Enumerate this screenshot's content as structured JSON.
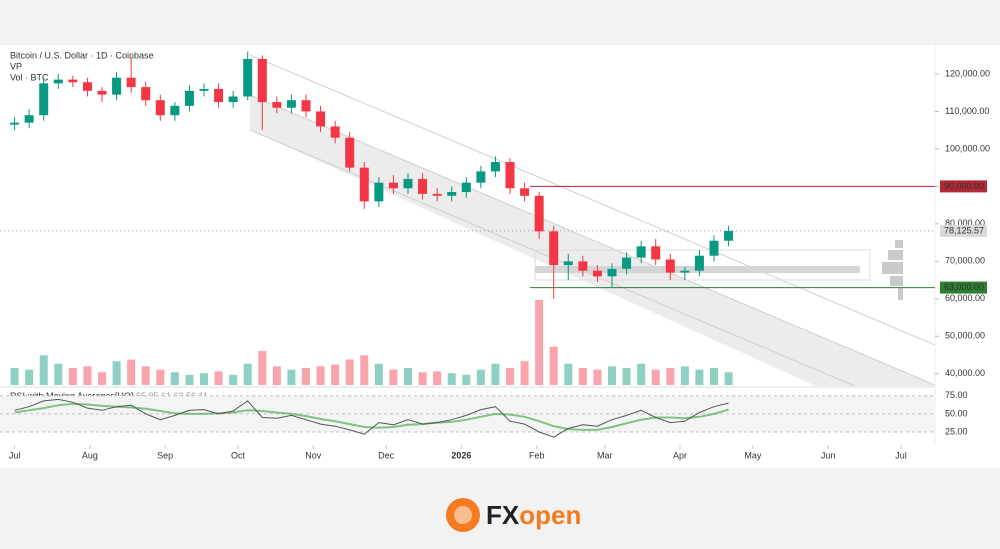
{
  "chart_data": {
    "type": "candlestick",
    "title": "Bitcoin / U.S. Dollar · 1D · Coinbase",
    "indicator_labels": [
      "VP",
      "Vol · BTC"
    ],
    "x": [
      0,
      6,
      12,
      18,
      24,
      30,
      36,
      42,
      48,
      54,
      60,
      66,
      72,
      78,
      84,
      90,
      96,
      102,
      108,
      114,
      120,
      126,
      132,
      138,
      144,
      150,
      156,
      162,
      168,
      174,
      180,
      186,
      192,
      198,
      204,
      210,
      216,
      222,
      228,
      234,
      240,
      246,
      252,
      258,
      264,
      270,
      276,
      282,
      288,
      294
    ],
    "xlim": [
      -6,
      379
    ],
    "xticks": [
      {
        "value": 0,
        "label": "Jul"
      },
      {
        "value": 31,
        "label": "Aug"
      },
      {
        "value": 62,
        "label": "Sep"
      },
      {
        "value": 92,
        "label": "Oct"
      },
      {
        "value": 123,
        "label": "Nov"
      },
      {
        "value": 153,
        "label": "Dec"
      },
      {
        "value": 184,
        "label": "2026"
      },
      {
        "value": 215,
        "label": "Feb"
      },
      {
        "value": 243,
        "label": "Mar"
      },
      {
        "value": 274,
        "label": "Apr"
      },
      {
        "value": 304,
        "label": "May"
      },
      {
        "value": 335,
        "label": "Jun"
      },
      {
        "value": 365,
        "label": "Jul"
      }
    ],
    "open": [
      106500,
      107000,
      109000,
      117500,
      118500,
      117800,
      115500,
      114500,
      119000,
      116500,
      113000,
      109000,
      111500,
      115500,
      116000,
      112500,
      114000,
      124000,
      112500,
      111000,
      113000,
      110000,
      106000,
      103000,
      95000,
      86000,
      91000,
      89500,
      92000,
      88000,
      87500,
      88500,
      91000,
      94000,
      96500,
      89500,
      87500,
      78000,
      69000,
      70000,
      67500,
      66000,
      68000,
      71000,
      74000,
      70500,
      67000,
      67500,
      71500,
      75500
    ],
    "high": [
      108500,
      110500,
      119000,
      120000,
      119500,
      119000,
      116500,
      120500,
      124500,
      118000,
      114500,
      112500,
      117000,
      117500,
      117500,
      115500,
      126000,
      125000,
      114000,
      114500,
      114500,
      111500,
      107500,
      104500,
      96500,
      92500,
      93000,
      93500,
      93500,
      89500,
      90000,
      92500,
      95500,
      98000,
      97500,
      91000,
      88500,
      79500,
      72000,
      71500,
      69000,
      69500,
      72500,
      75500,
      76000,
      72000,
      68500,
      73000,
      77000,
      79500
    ],
    "low": [
      105000,
      105500,
      107500,
      116000,
      116500,
      114000,
      112500,
      113000,
      115000,
      111500,
      107500,
      107500,
      110000,
      114000,
      111000,
      111000,
      113000,
      105000,
      109500,
      109500,
      108500,
      104500,
      101500,
      94000,
      84000,
      84500,
      88000,
      88000,
      86500,
      86000,
      86000,
      87000,
      89500,
      92500,
      88000,
      86000,
      76000,
      60000,
      65000,
      66000,
      64500,
      63000,
      66500,
      69500,
      69000,
      65000,
      65000,
      66000,
      70000,
      74000
    ],
    "close": [
      107000,
      109000,
      117500,
      118500,
      117800,
      115500,
      114500,
      119000,
      116500,
      113000,
      109000,
      111500,
      115500,
      116000,
      112500,
      114000,
      124000,
      112500,
      111000,
      113000,
      110000,
      106000,
      103000,
      95000,
      86000,
      91000,
      89500,
      92000,
      88000,
      87500,
      88500,
      91000,
      94000,
      96500,
      89500,
      87500,
      78000,
      69000,
      70000,
      67500,
      66000,
      68000,
      71000,
      74000,
      70500,
      67000,
      67500,
      71500,
      75500,
      78125.57
    ],
    "up_color": "#089981",
    "down_color": "#f23645",
    "ylim": [
      37000,
      126400
    ],
    "yticks": [
      {
        "value": 40000,
        "label": "40,000.00"
      },
      {
        "value": 50000,
        "label": "50,000.00"
      },
      {
        "value": 60000,
        "label": "60,000.00"
      },
      {
        "value": 70000,
        "label": "70,000.00"
      },
      {
        "value": 80000,
        "label": "80,000.00"
      },
      {
        "value": 90000,
        "label": "90,000.00"
      },
      {
        "value": 100000,
        "label": "100,000.00"
      },
      {
        "value": 110000,
        "label": "110,000.00"
      },
      {
        "value": 120000,
        "label": "120,000.00"
      }
    ],
    "last_price": {
      "value": 78125.57,
      "label": "78,125.57"
    },
    "levels": [
      {
        "value": 90000,
        "label": "90,000.00",
        "color": "#b22833"
      },
      {
        "value": 63000,
        "label": "63,000.00",
        "color": "#2e7d32"
      }
    ],
    "volume": {
      "values": [
        20,
        18,
        35,
        25,
        20,
        22,
        15,
        28,
        30,
        22,
        18,
        15,
        12,
        14,
        16,
        12,
        25,
        40,
        22,
        18,
        20,
        22,
        24,
        30,
        35,
        25,
        18,
        20,
        15,
        16,
        14,
        12,
        18,
        25,
        20,
        28,
        100,
        45,
        25,
        20,
        18,
        22,
        20,
        25,
        18,
        20,
        22,
        18,
        20,
        15
      ],
      "ylim": [
        0,
        100
      ]
    },
    "rsi": {
      "title": "RSI with Moving Averages[UO]",
      "readings": [
        {
          "value": 65.05,
          "label": "65.05"
        },
        {
          "value": 61.63,
          "label": "61.63"
        },
        {
          "value": 56.11,
          "label": "56.11"
        }
      ],
      "values": [
        55,
        60,
        68,
        70,
        66,
        58,
        55,
        60,
        62,
        50,
        42,
        48,
        55,
        56,
        50,
        54,
        68,
        45,
        44,
        48,
        42,
        36,
        33,
        28,
        22,
        38,
        35,
        42,
        36,
        38,
        42,
        48,
        56,
        60,
        40,
        36,
        25,
        18,
        30,
        35,
        33,
        42,
        48,
        55,
        45,
        38,
        40,
        52,
        60,
        65.05
      ],
      "ma": [
        52,
        55,
        58,
        62,
        64,
        63,
        61,
        60,
        59,
        57,
        54,
        51,
        50,
        50,
        51,
        52,
        55,
        54,
        52,
        50,
        47,
        43,
        40,
        36,
        32,
        31,
        32,
        35,
        36,
        38,
        39,
        42,
        46,
        50,
        49,
        46,
        40,
        33,
        29,
        28,
        28,
        32,
        37,
        42,
        45,
        45,
        44,
        46,
        50,
        56.11
      ],
      "color": "#555555",
      "ma_color": "#4caf50",
      "ylim": [
        14,
        83
      ],
      "yticks": [
        {
          "value": 25,
          "label": "25.00"
        },
        {
          "value": 50,
          "label": "50.00"
        },
        {
          "value": 75,
          "label": "75.00"
        }
      ]
    }
  },
  "logo": {
    "part1": "FX",
    "part2": "open"
  }
}
